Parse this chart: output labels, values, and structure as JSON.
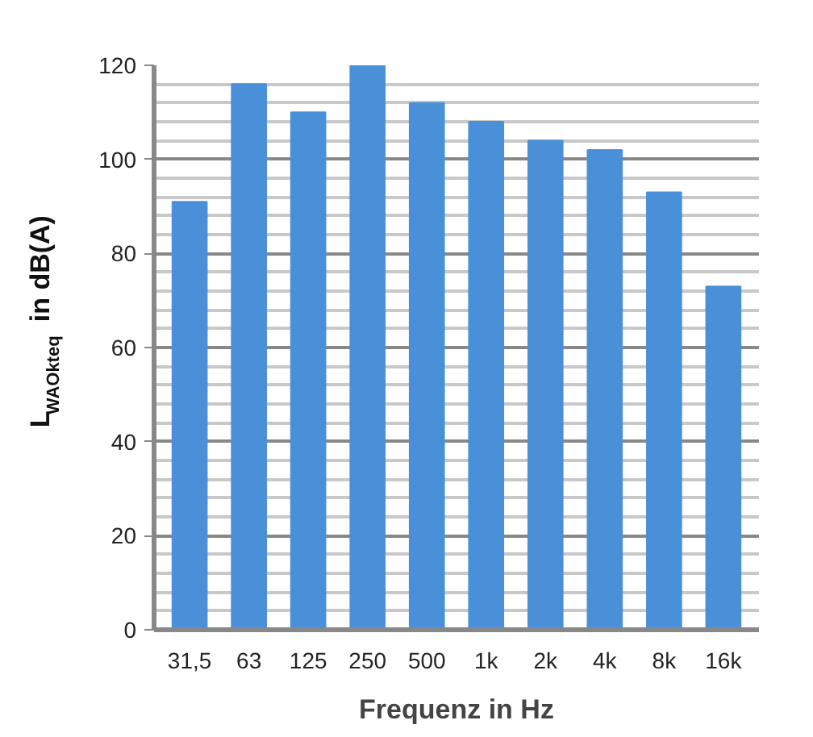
{
  "chart_data": {
    "type": "bar",
    "xlabel": "Frequenz in Hz",
    "ylabel": "L$_{WAOkteq}$ in dB(A)",
    "categories": [
      "31,5",
      "63",
      "125",
      "250",
      "500",
      "1k",
      "2k",
      "4k",
      "8k",
      "16k"
    ],
    "values": [
      91,
      116,
      110,
      120,
      112,
      108,
      104,
      102,
      93,
      73
    ],
    "color": "#4a90d9",
    "ylim": [
      0,
      120
    ],
    "yticks": [
      0,
      20,
      40,
      60,
      80,
      100,
      120
    ],
    "grid": "y"
  }
}
